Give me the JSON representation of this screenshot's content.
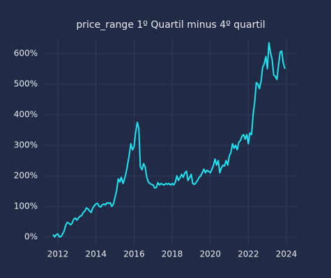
{
  "chart_data": {
    "type": "line",
    "title": "price_range 1º Quartil minus 4º quartil",
    "x": [
      2011.75,
      2011.83,
      2011.92,
      2012.0,
      2012.08,
      2012.17,
      2012.25,
      2012.33,
      2012.42,
      2012.5,
      2012.58,
      2012.67,
      2012.75,
      2012.83,
      2012.92,
      2013.0,
      2013.08,
      2013.17,
      2013.25,
      2013.33,
      2013.42,
      2013.5,
      2013.58,
      2013.67,
      2013.75,
      2013.83,
      2013.92,
      2014.0,
      2014.08,
      2014.17,
      2014.25,
      2014.33,
      2014.42,
      2014.5,
      2014.58,
      2014.67,
      2014.75,
      2014.83,
      2014.92,
      2015.0,
      2015.08,
      2015.17,
      2015.25,
      2015.33,
      2015.42,
      2015.5,
      2015.58,
      2015.67,
      2015.75,
      2015.83,
      2015.92,
      2016.0,
      2016.08,
      2016.17,
      2016.25,
      2016.33,
      2016.42,
      2016.5,
      2016.58,
      2016.67,
      2016.75,
      2016.83,
      2016.92,
      2017.0,
      2017.08,
      2017.17,
      2017.25,
      2017.33,
      2017.42,
      2017.5,
      2017.58,
      2017.67,
      2017.75,
      2017.83,
      2017.92,
      2018.0,
      2018.08,
      2018.17,
      2018.25,
      2018.33,
      2018.42,
      2018.5,
      2018.58,
      2018.67,
      2018.75,
      2018.83,
      2018.92,
      2019.0,
      2019.08,
      2019.17,
      2019.25,
      2019.33,
      2019.42,
      2019.5,
      2019.58,
      2019.67,
      2019.75,
      2019.83,
      2019.92,
      2020.0,
      2020.08,
      2020.17,
      2020.25,
      2020.33,
      2020.42,
      2020.5,
      2020.58,
      2020.67,
      2020.75,
      2020.83,
      2020.92,
      2021.0,
      2021.08,
      2021.17,
      2021.25,
      2021.33,
      2021.42,
      2021.5,
      2021.58,
      2021.67,
      2021.75,
      2021.83,
      2021.92,
      2022.0,
      2022.08,
      2022.17,
      2022.25,
      2022.33,
      2022.42,
      2022.5,
      2022.58,
      2022.67,
      2022.75,
      2022.83,
      2022.92,
      2023.0,
      2023.08,
      2023.17,
      2023.25,
      2023.33,
      2023.42,
      2023.5,
      2023.58,
      2023.67,
      2023.75,
      2023.83,
      2023.92
    ],
    "series": [
      {
        "color": "#1fe5f2",
        "values": [
          8,
          0,
          8,
          10,
          0,
          2,
          10,
          20,
          40,
          48,
          45,
          40,
          45,
          58,
          62,
          55,
          62,
          68,
          70,
          80,
          85,
          95,
          92,
          85,
          80,
          95,
          103,
          108,
          110,
          100,
          98,
          105,
          108,
          105,
          112,
          110,
          112,
          100,
          108,
          130,
          150,
          190,
          180,
          195,
          175,
          190,
          210,
          240,
          270,
          305,
          285,
          295,
          340,
          375,
          355,
          230,
          220,
          240,
          230,
          195,
          180,
          175,
          172,
          170,
          160,
          162,
          178,
          170,
          175,
          172,
          170,
          175,
          172,
          175,
          170,
          175,
          170,
          180,
          200,
          185,
          195,
          205,
          195,
          210,
          215,
          185,
          195,
          205,
          175,
          172,
          178,
          185,
          195,
          200,
          210,
          222,
          210,
          218,
          215,
          210,
          220,
          235,
          255,
          235,
          250,
          210,
          225,
          235,
          232,
          250,
          235,
          265,
          275,
          305,
          290,
          300,
          285,
          310,
          315,
          330,
          335,
          320,
          335,
          305,
          340,
          335,
          400,
          440,
          505,
          500,
          485,
          510,
          555,
          565,
          590,
          550,
          635,
          600,
          580,
          530,
          525,
          515,
          560,
          605,
          608,
          570,
          550
        ]
      }
    ],
    "xlim": [
      2011.23,
      2024.62
    ],
    "xticks": [
      2012,
      2014,
      2016,
      2018,
      2020,
      2022,
      2024
    ],
    "ylim": [
      -25,
      650
    ],
    "yticks": [
      {
        "value": 0,
        "label": "0%"
      },
      {
        "value": 100,
        "label": "100%"
      },
      {
        "value": 200,
        "label": "200%"
      },
      {
        "value": 300,
        "label": "300%"
      },
      {
        "value": 400,
        "label": "400%"
      },
      {
        "value": 500,
        "label": "500%"
      },
      {
        "value": 600,
        "label": "600%"
      }
    ],
    "grid": true
  }
}
